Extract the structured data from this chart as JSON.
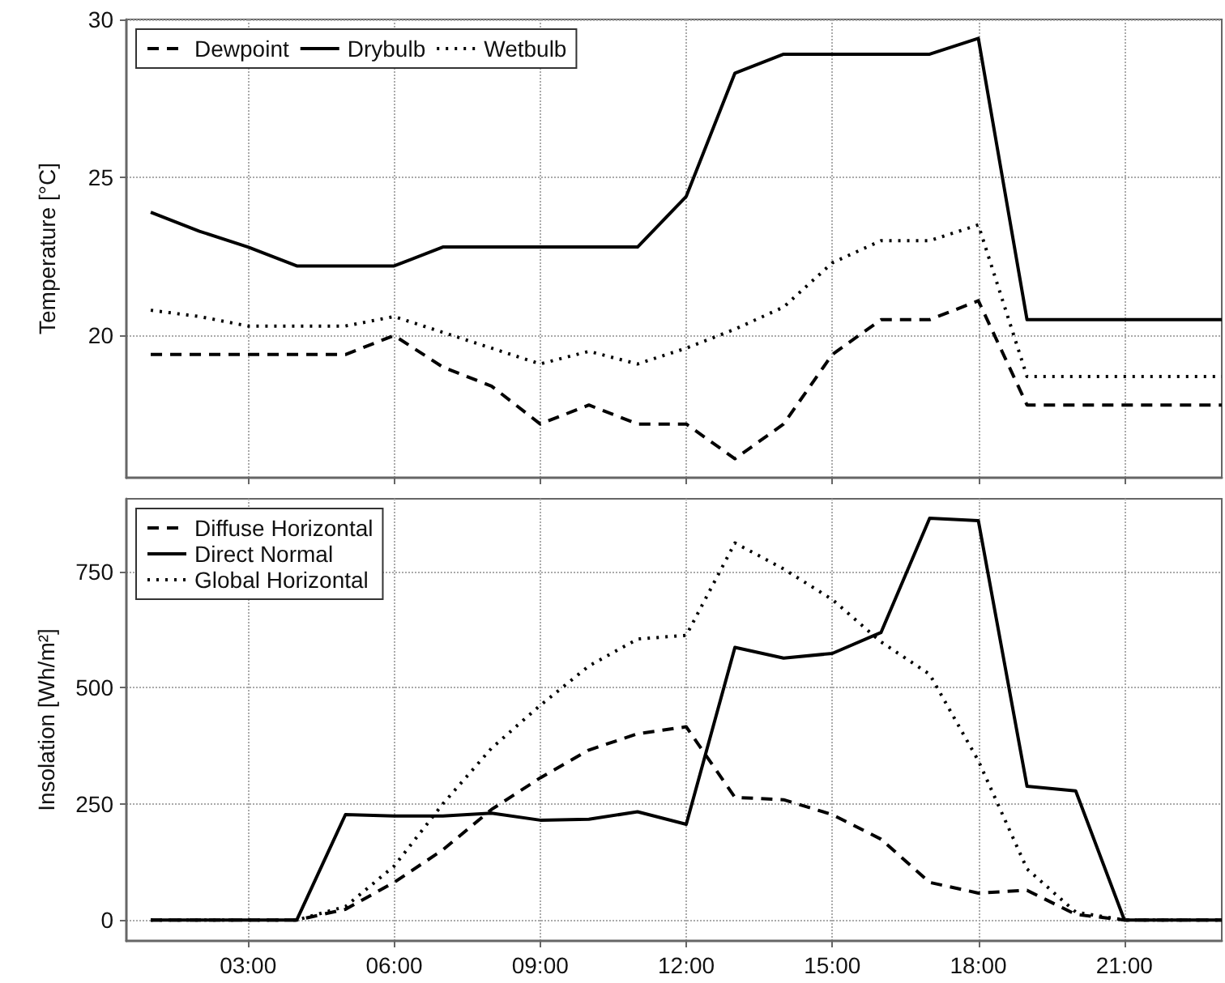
{
  "chart_data": [
    {
      "type": "line",
      "ylabel": "Temperature [°C]",
      "x": [
        1,
        2,
        3,
        4,
        5,
        6,
        7,
        8,
        9,
        10,
        11,
        12,
        13,
        14,
        15,
        16,
        17,
        18,
        19,
        20,
        21,
        22,
        23
      ],
      "series": [
        {
          "name": "Dewpoint",
          "color": "#000000",
          "line_style": "dashed",
          "values": [
            19.4,
            19.4,
            19.4,
            19.4,
            19.4,
            20.0,
            19.0,
            18.4,
            17.2,
            17.8,
            17.2,
            17.2,
            16.1,
            17.2,
            19.4,
            20.5,
            20.5,
            21.1,
            17.8,
            17.8,
            17.8,
            17.8,
            17.8
          ]
        },
        {
          "name": "Drybulb",
          "color": "#000000",
          "line_style": "solid",
          "values": [
            23.9,
            23.3,
            22.8,
            22.2,
            22.2,
            22.2,
            22.8,
            22.8,
            22.8,
            22.8,
            22.8,
            24.4,
            28.3,
            28.9,
            28.9,
            28.9,
            28.9,
            29.4,
            20.5,
            20.5,
            20.5,
            20.5,
            20.5
          ]
        },
        {
          "name": "Wetbulb",
          "color": "#000000",
          "line_style": "dotted",
          "values": [
            20.8,
            20.6,
            20.3,
            20.3,
            20.3,
            20.6,
            20.1,
            19.6,
            19.1,
            19.5,
            19.1,
            19.6,
            20.2,
            20.9,
            22.3,
            23.0,
            23.0,
            23.5,
            18.7,
            18.7,
            18.7,
            18.7,
            18.7
          ]
        }
      ],
      "xlim": [
        0.5,
        23
      ],
      "xticks": [
        {
          "value": 3,
          "label": null
        },
        {
          "value": 6,
          "label": null
        },
        {
          "value": 9,
          "label": null
        },
        {
          "value": 12,
          "label": null
        },
        {
          "value": 15,
          "label": null
        },
        {
          "value": 18,
          "label": null
        },
        {
          "value": 21,
          "label": null
        }
      ],
      "ylim": [
        15.5,
        30
      ],
      "yticks": [
        20,
        25,
        30
      ],
      "tick_labels": "y",
      "grid": true,
      "legend": "top left",
      "marker": "none"
    },
    {
      "type": "line",
      "ylabel": "Insolation [Wh/m²]",
      "x": [
        1,
        2,
        3,
        4,
        5,
        6,
        7,
        8,
        9,
        10,
        11,
        12,
        13,
        14,
        15,
        16,
        17,
        18,
        19,
        20,
        21,
        22,
        23
      ],
      "series": [
        {
          "name": "Diffuse Horizontal",
          "color": "#000000",
          "line_style": "dashed",
          "values": [
            0,
            0,
            0,
            0,
            23,
            81,
            151,
            238,
            306,
            366,
            401,
            416,
            264,
            259,
            227,
            174,
            81,
            58,
            64,
            12,
            0,
            0,
            0
          ]
        },
        {
          "name": "Direct Normal",
          "color": "#000000",
          "line_style": "solid",
          "values": [
            0,
            0,
            0,
            0,
            227,
            224,
            224,
            230,
            215,
            217,
            233,
            206,
            587,
            564,
            574,
            619,
            865,
            860,
            288,
            278,
            0,
            0,
            0
          ]
        },
        {
          "name": "Global Horizontal",
          "color": "#000000",
          "line_style": "dotted",
          "values": [
            0,
            0,
            0,
            0,
            29,
            116,
            250,
            370,
            462,
            547,
            605,
            613,
            812,
            756,
            690,
            599,
            529,
            343,
            110,
            17,
            0,
            0,
            0
          ]
        }
      ],
      "xlim": [
        0.5,
        23
      ],
      "xticks": [
        {
          "value": 3,
          "label": "03:00"
        },
        {
          "value": 6,
          "label": "06:00"
        },
        {
          "value": 9,
          "label": "09:00"
        },
        {
          "value": 12,
          "label": "12:00"
        },
        {
          "value": 15,
          "label": "15:00"
        },
        {
          "value": 18,
          "label": "18:00"
        },
        {
          "value": 21,
          "label": "21:00"
        }
      ],
      "ylim": [
        -45,
        907
      ],
      "yticks": [
        0,
        250,
        500,
        750
      ],
      "grid": true,
      "legend": "top left",
      "marker": "none"
    }
  ]
}
